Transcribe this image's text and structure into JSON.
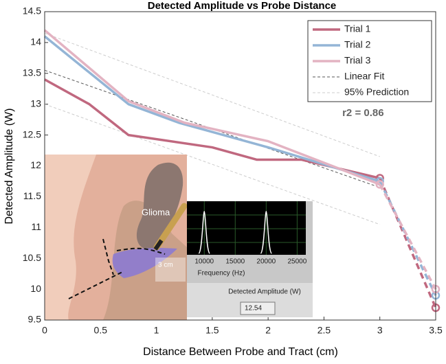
{
  "chart_data": {
    "type": "line",
    "title": "Detected Amplitude vs Probe Distance",
    "x_label": "Distance Between Probe and Tract (cm)",
    "y_label": "Detected Amplitude (W)",
    "xlim": [
      0,
      3.5
    ],
    "xticks": [
      0,
      0.5,
      1,
      1.5,
      2,
      2.5,
      3,
      3.5
    ],
    "ylim": [
      9.5,
      14.5
    ],
    "yticks": [
      9.5,
      10,
      10.5,
      11,
      11.5,
      12,
      12.5,
      13,
      13.5,
      14,
      14.5
    ],
    "legend_position": "upper right",
    "series": [
      {
        "name": "Trial 1",
        "color": "#c0687f",
        "x": [
          0,
          0.4,
          0.75,
          1.5,
          1.9,
          2.3,
          3
        ],
        "values": [
          13.4,
          13.0,
          12.5,
          12.3,
          12.1,
          12.1,
          11.8
        ],
        "extrapolated": {
          "x": [
            3,
            3.5
          ],
          "values": [
            11.8,
            9.7
          ]
        }
      },
      {
        "name": "Trial 2",
        "color": "#94b5d6",
        "x": [
          0,
          0.75,
          1.2,
          2,
          3
        ],
        "values": [
          14.1,
          13.0,
          12.7,
          12.3,
          11.75
        ],
        "extrapolated": {
          "x": [
            3,
            3.5
          ],
          "values": [
            11.75,
            9.9
          ]
        }
      },
      {
        "name": "Trial 3",
        "color": "#e3b3c2",
        "x": [
          0,
          0.75,
          1.25,
          2,
          3
        ],
        "values": [
          14.2,
          13.05,
          12.7,
          12.4,
          11.7
        ],
        "extrapolated": {
          "x": [
            3,
            3.5
          ],
          "values": [
            11.7,
            10.0
          ]
        }
      }
    ],
    "fit": {
      "name": "Linear Fit",
      "color": "#555555",
      "x": [
        0,
        3
      ],
      "values": [
        13.55,
        11.65
      ]
    },
    "prediction": {
      "name": "95% Prediction",
      "color": "#cccccc",
      "x": [
        0,
        3
      ],
      "upper": [
        14.15,
        12.15
      ],
      "lower": [
        13.0,
        11.05
      ]
    },
    "annotation": {
      "text": "r2 = 0.86",
      "x": 2.85,
      "y": 12.85
    },
    "inset": {
      "glioma_label": "Glioma",
      "distance_label": "3 cm",
      "spectrum": {
        "xlim": [
          7200,
          26400
        ],
        "xticks": [
          10000,
          15000,
          20000,
          25000
        ],
        "x_label": "Frequency (Hz)",
        "peaks": [
          10000,
          20000
        ]
      },
      "readout_label": "Detected Amplitude (W)",
      "readout_value": 12.54
    }
  }
}
